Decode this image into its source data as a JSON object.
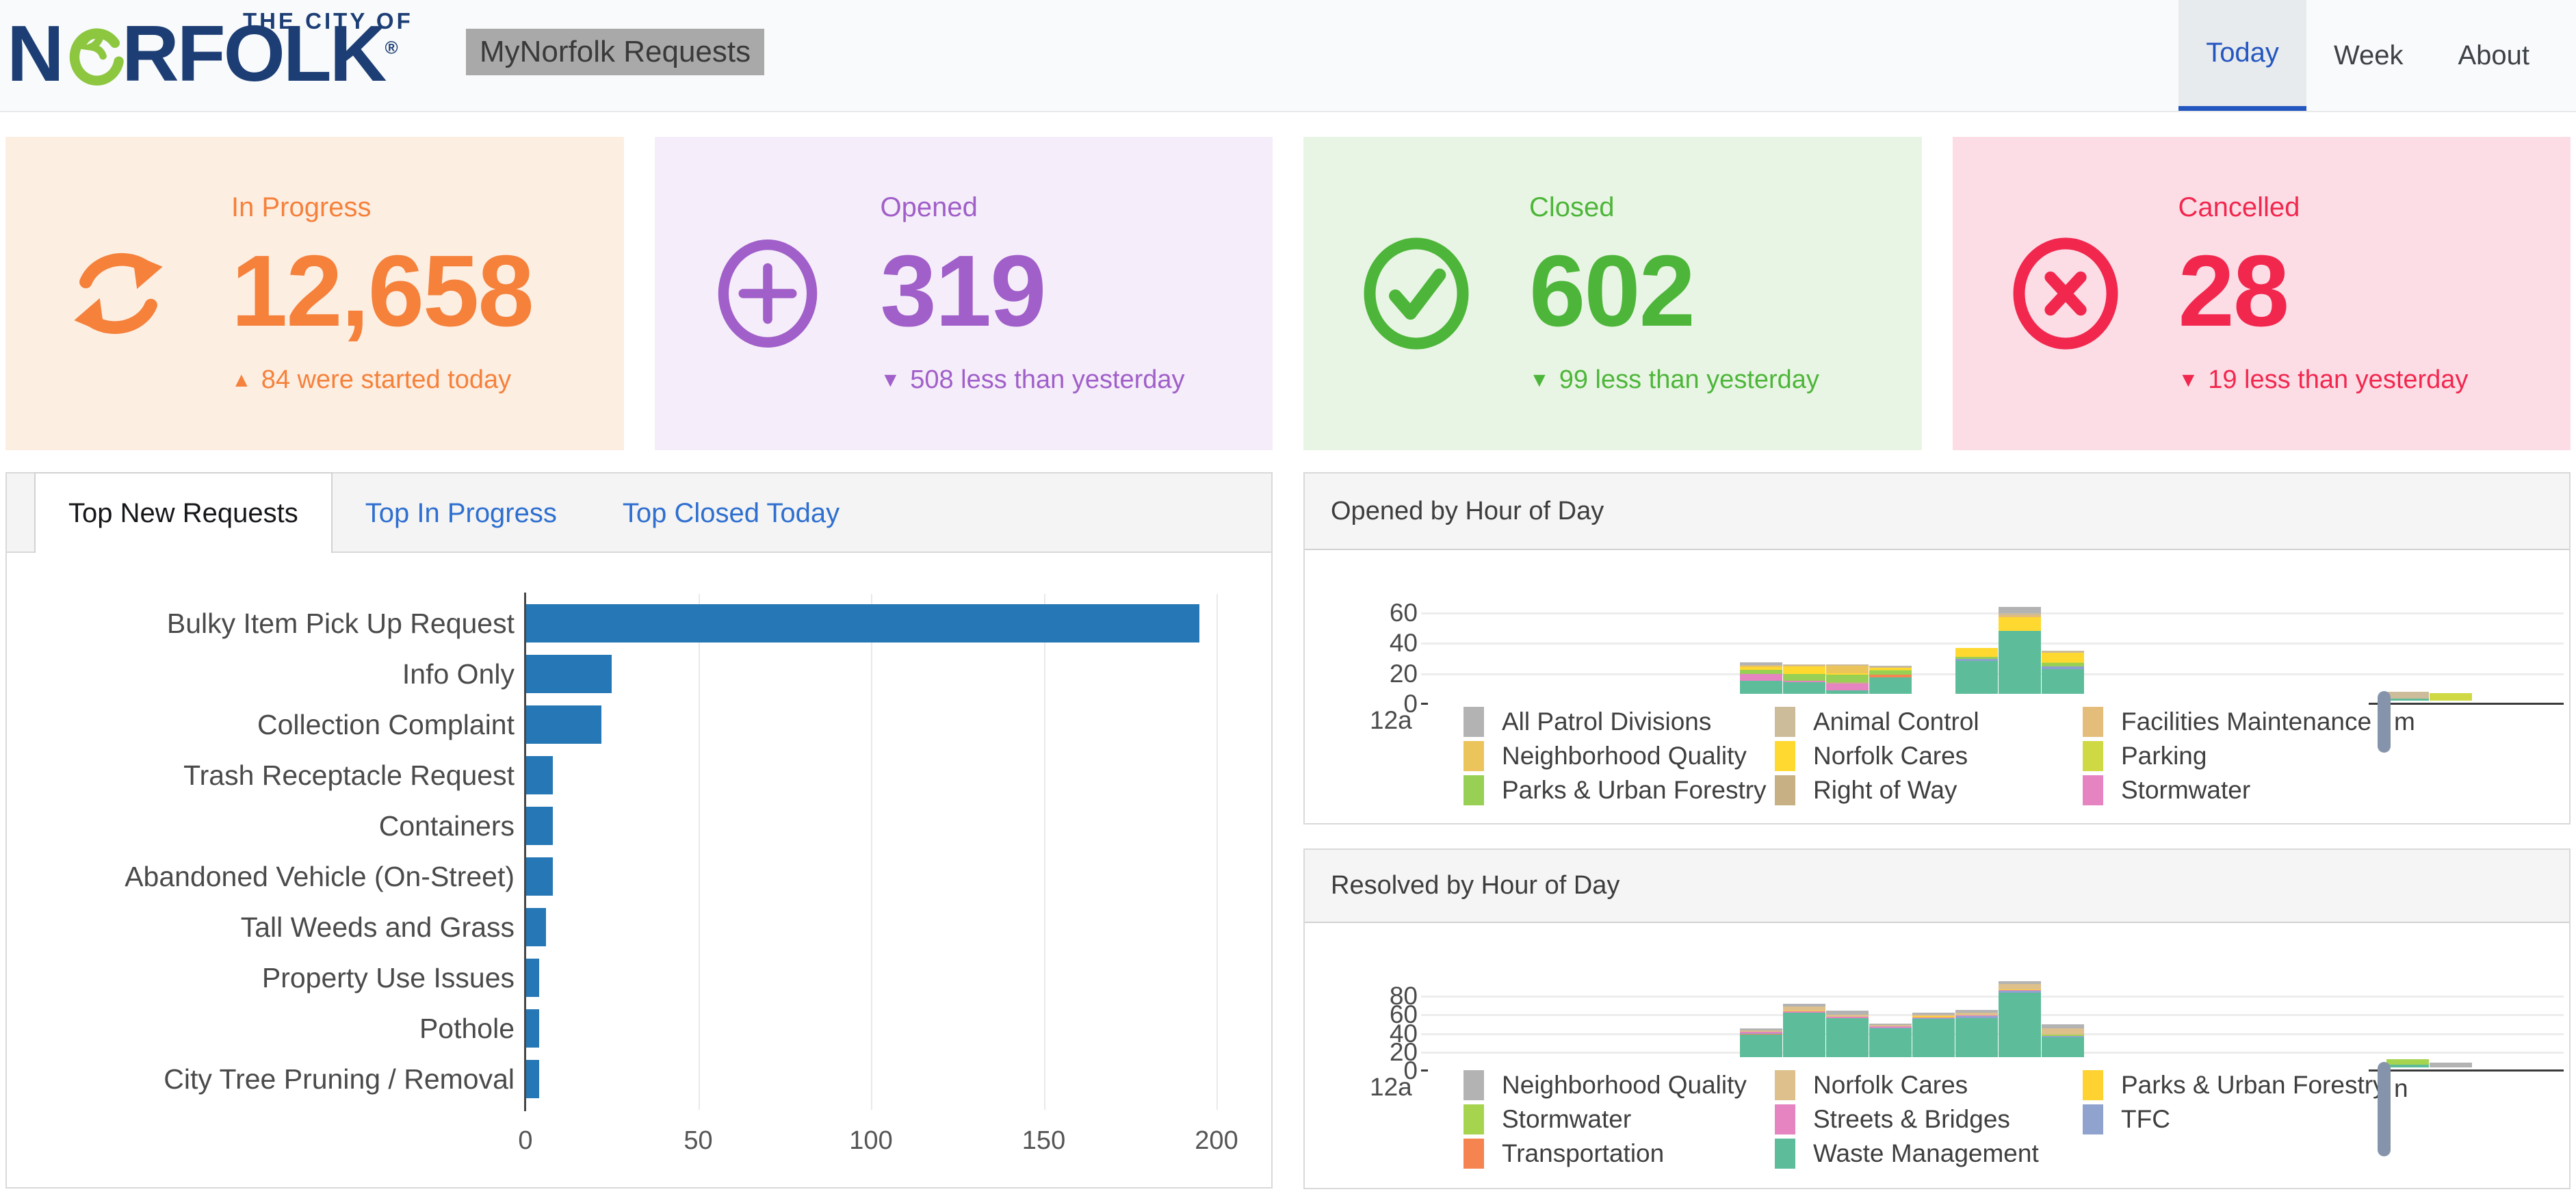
{
  "header": {
    "logo_tagline": "THE CITY OF",
    "logo_name": "NORFOLK",
    "logo_navy": "#1d3e75",
    "logo_green": "#8dc63f",
    "title": "MyNorfolk Requests",
    "nav_tabs": [
      {
        "label": "Today",
        "active": true
      },
      {
        "label": "Week",
        "active": false
      },
      {
        "label": "About",
        "active": false
      }
    ],
    "accent": "#2456c0"
  },
  "cards": [
    {
      "label": "In Progress",
      "value": "12,658",
      "delta_text": "84 were started today",
      "delta_direction": "up",
      "icon": "sync-icon",
      "accent": "#f5813b",
      "background": "#fdeee2"
    },
    {
      "label": "Opened",
      "value": "319",
      "delta_text": "508 less than yesterday",
      "delta_direction": "down",
      "icon": "plus-circle-icon",
      "accent": "#a05fc9",
      "background": "#f5edf9"
    },
    {
      "label": "Closed",
      "value": "602",
      "delta_text": "99 less than yesterday",
      "delta_direction": "down",
      "icon": "check-circle-icon",
      "accent": "#4db63a",
      "background": "#e9f5e4"
    },
    {
      "label": "Cancelled",
      "value": "28",
      "delta_text": "19 less than yesterday",
      "delta_direction": "down",
      "icon": "x-circle-icon",
      "accent": "#f2274e",
      "background": "#fcdde6"
    }
  ],
  "left_panel": {
    "tabs": [
      {
        "label": "Top New Requests",
        "active": true
      },
      {
        "label": "Top In Progress",
        "active": false
      },
      {
        "label": "Top Closed Today",
        "active": false
      }
    ],
    "bar_color": "#2677b5",
    "categories": [
      "Bulky Item Pick Up Request",
      "Info Only",
      "Collection Complaint",
      "Trash Receptacle Request",
      "Containers",
      "Abandoned Vehicle (On-Street)",
      "Tall Weeds and Grass",
      "Property Use Issues",
      "Pothole",
      "City Tree Pruning / Removal"
    ],
    "values": [
      195,
      25,
      22,
      8,
      8,
      8,
      6,
      4,
      4,
      4
    ],
    "x_ticks": [
      0,
      50,
      100,
      150,
      200
    ]
  },
  "hour_panels": [
    {
      "title": "Opened by Hour of Day",
      "y_ticks": [
        20,
        40,
        60
      ],
      "zero_label": "0",
      "x_tick_first": "12a",
      "x_tick_fragment": "m",
      "legend": [
        {
          "label": "All Patrol Divisions",
          "color": "#b3b3b3"
        },
        {
          "label": "Animal Control",
          "color": "#cdbc9a"
        },
        {
          "label": "Facilities Maintenance",
          "color": "#e3bd79"
        },
        {
          "label": "Neighborhood Quality",
          "color": "#ecc45c"
        },
        {
          "label": "Norfolk Cares",
          "color": "#ffd92f"
        },
        {
          "label": "Parking",
          "color": "#cfd943"
        },
        {
          "label": "Parks & Urban Forestry",
          "color": "#97d054"
        },
        {
          "label": "Right of Way",
          "color": "#c7b083"
        },
        {
          "label": "Stormwater",
          "color": "#e584c1"
        }
      ],
      "palette": {
        "All Patrol Divisions": "#b3b3b3",
        "Animal Control": "#cdbc9a",
        "Facilities Maintenance": "#e3bd79",
        "Neighborhood Quality": "#ecc45c",
        "Norfolk Cares": "#ffd92f",
        "Parking": "#cfd943",
        "Parks & Urban Forestry": "#97d054",
        "Right of Way": "#c7b083",
        "Stormwater": "#e584c1",
        "TFC": "#8c9fd0",
        "Transportation": "#f58450",
        "Waste Management": "#5dbd9b"
      },
      "stack_order": [
        "Waste Management",
        "Transportation",
        "TFC",
        "Stormwater",
        "Right of Way",
        "Parks & Urban Forestry",
        "Parking",
        "Norfolk Cares",
        "Neighborhood Quality",
        "Facilities Maintenance",
        "Animal Control",
        "All Patrol Divisions"
      ],
      "bars": [
        {
          "hour": 7,
          "segments": {
            "Waste Management": 13,
            "Stormwater": 4.5,
            "Parks & Urban Forestry": 3,
            "Norfolk Cares": 1.5,
            "Neighborhood Quality": 1,
            "Animal Control": 0.5,
            "All Patrol Divisions": 2
          }
        },
        {
          "hour": 8,
          "segments": {
            "Waste Management": 12,
            "Stormwater": 1,
            "Parks & Urban Forestry": 4.5,
            "Norfolk Cares": 5,
            "Facilities Maintenance": 0.5,
            "Animal Control": 1
          }
        },
        {
          "hour": 9,
          "segments": {
            "Waste Management": 7,
            "Stormwater": 4.5,
            "Right of Way": 0.5,
            "Parks & Urban Forestry": 5,
            "Norfolk Cares": 1,
            "Neighborhood Quality": 5,
            "Animal Control": 1
          }
        },
        {
          "hour": 10,
          "segments": {
            "Waste Management": 15.5,
            "Transportation": 1.5,
            "Parks & Urban Forestry": 3,
            "Parking": 0.5,
            "Norfolk Cares": 1,
            "Animal Control": 1,
            "All Patrol Divisions": 0.5
          }
        },
        {
          "hour": 12,
          "segments": {
            "Waste Management": 26,
            "TFC": 1.5,
            "Parks & Urban Forestry": 1.5,
            "Norfolk Cares": 6
          }
        },
        {
          "hour": 13,
          "segments": {
            "Waste Management": 46,
            "Facilities Maintenance": 1.5,
            "Norfolk Cares": 9,
            "Animal Control": 1.5,
            "All Patrol Divisions": 4
          }
        },
        {
          "hour": 14,
          "segments": {
            "Waste Management": 21,
            "TFC": 1.5,
            "Parks & Urban Forestry": 2.5,
            "Parking": 0.5,
            "Norfolk Cares": 6,
            "Animal Control": 1.5
          }
        },
        {
          "hour": 15,
          "segments": {
            "Neighborhood Quality": 1.5,
            "Animal Control": 1,
            "All Patrol Divisions": 0.5
          }
        },
        {
          "hour": 22,
          "segments": {
            "Waste Management": 1.5,
            "Animal Control": 4.5
          }
        },
        {
          "hour": 23,
          "segments": {
            "Parking": 5
          }
        }
      ]
    },
    {
      "title": "Resolved by Hour of Day",
      "y_ticks": [
        20,
        40,
        60,
        80
      ],
      "zero_label": "0",
      "x_tick_first": "12a",
      "x_tick_fragment": "n",
      "legend": [
        {
          "label": "Neighborhood Quality",
          "color": "#b3b3b3"
        },
        {
          "label": "Norfolk Cares",
          "color": "#ddc08b"
        },
        {
          "label": "Parks & Urban Forestry",
          "color": "#fdd231"
        },
        {
          "label": "Stormwater",
          "color": "#a6d44f"
        },
        {
          "label": "Streets & Bridges",
          "color": "#e584c1"
        },
        {
          "label": "TFC",
          "color": "#90a3cf"
        },
        {
          "label": "Transportation",
          "color": "#f58450"
        },
        {
          "label": "Waste Management",
          "color": "#5dbd9b"
        }
      ],
      "palette": {
        "Neighborhood Quality": "#b3b3b3",
        "Norfolk Cares": "#ddc08b",
        "Parks & Urban Forestry": "#fdd231",
        "Stormwater": "#a6d44f",
        "Streets & Bridges": "#e584c1",
        "TFC": "#90a3cf",
        "Transportation": "#f58450",
        "Waste Management": "#5dbd9b"
      },
      "stack_order": [
        "Waste Management",
        "Transportation",
        "TFC",
        "Streets & Bridges",
        "Stormwater",
        "Parks & Urban Forestry",
        "Norfolk Cares",
        "Neighborhood Quality"
      ],
      "bars": [
        {
          "hour": 7,
          "segments": {
            "Waste Management": 35,
            "Transportation": 1,
            "TFC": 0.5,
            "Streets & Bridges": 1.5,
            "Norfolk Cares": 2,
            "Neighborhood Quality": 2
          }
        },
        {
          "hour": 8,
          "segments": {
            "Waste Management": 59,
            "Streets & Bridges": 1.5,
            "Parks & Urban Forestry": 0.5,
            "Norfolk Cares": 4.5,
            "Neighborhood Quality": 3
          }
        },
        {
          "hour": 9,
          "segments": {
            "Waste Management": 53,
            "Streets & Bridges": 1.5,
            "Norfolk Cares": 2,
            "Neighborhood Quality": 4.5
          }
        },
        {
          "hour": 10,
          "segments": {
            "Waste Management": 42,
            "TFC": 1,
            "Streets & Bridges": 1.5,
            "Norfolk Cares": 1,
            "Neighborhood Quality": 1.5
          }
        },
        {
          "hour": 11,
          "segments": {
            "Waste Management": 52,
            "TFC": 1,
            "Streets & Bridges": 0.5,
            "Parks & Urban Forestry": 1.5,
            "Norfolk Cares": 1.5,
            "Neighborhood Quality": 2.5
          }
        },
        {
          "hour": 12,
          "segments": {
            "Waste Management": 53,
            "TFC": 2.5,
            "Streets & Bridges": 0.5,
            "Norfolk Cares": 3,
            "Neighborhood Quality": 3
          }
        },
        {
          "hour": 13,
          "segments": {
            "Waste Management": 80,
            "TFC": 2,
            "Streets & Bridges": 1,
            "Parks & Urban Forestry": 1,
            "Norfolk Cares": 6,
            "Neighborhood Quality": 3
          }
        },
        {
          "hour": 14,
          "segments": {
            "Waste Management": 32,
            "TFC": 2,
            "Stormwater": 1.5,
            "Norfolk Cares": 6.5,
            "Neighborhood Quality": 4
          }
        },
        {
          "hour": 22,
          "segments": {
            "Waste Management": 3,
            "Stormwater": 6
          }
        },
        {
          "hour": 23,
          "segments": {
            "Neighborhood Quality": 5
          }
        }
      ]
    }
  ],
  "chart_data": [
    {
      "type": "bar",
      "orientation": "horizontal",
      "title": "Top New Requests",
      "categories": [
        "Bulky Item Pick Up Request",
        "Info Only",
        "Collection Complaint",
        "Trash Receptacle Request",
        "Containers",
        "Abandoned Vehicle (On-Street)",
        "Tall Weeds and Grass",
        "Property Use Issues",
        "Pothole",
        "City Tree Pruning / Removal"
      ],
      "values": [
        195,
        25,
        22,
        8,
        8,
        8,
        6,
        4,
        4,
        4
      ],
      "xlim": [
        0,
        200
      ],
      "x_ticks": [
        0,
        50,
        100,
        150,
        200
      ]
    },
    {
      "type": "bar",
      "subtype": "stacked",
      "title": "Opened by Hour of Day",
      "x": "hour of day (12a – 12pm shown)",
      "hours": [
        7,
        8,
        9,
        10,
        12,
        13,
        14,
        15,
        22,
        23
      ],
      "totals": [
        25.5,
        24,
        24,
        23,
        35,
        62,
        33,
        3,
        6,
        5
      ],
      "ylim": [
        0,
        65
      ],
      "y_ticks": [
        0,
        20,
        40,
        60
      ]
    },
    {
      "type": "bar",
      "subtype": "stacked",
      "title": "Resolved by Hour of Day",
      "x": "hour of day (12a shown)",
      "hours": [
        7,
        8,
        9,
        10,
        11,
        12,
        13,
        14,
        22,
        23
      ],
      "totals": [
        42,
        68.5,
        61,
        47,
        59,
        62,
        93,
        46,
        9,
        5
      ],
      "ylim": [
        0,
        95
      ],
      "y_ticks": [
        0,
        20,
        40,
        60,
        80
      ]
    }
  ]
}
